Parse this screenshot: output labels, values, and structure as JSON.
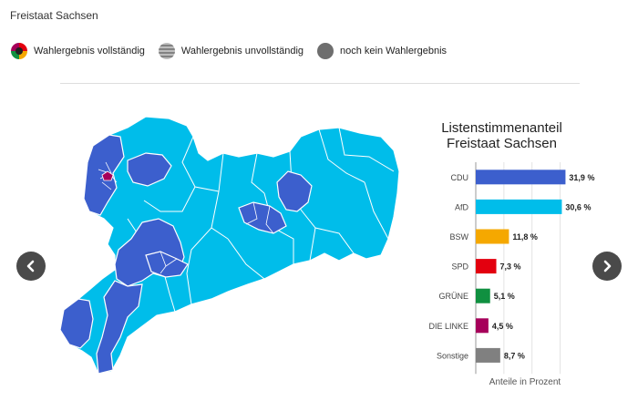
{
  "page": {
    "title": "Freistaat Sachsen"
  },
  "legend": {
    "items": [
      {
        "label": "Wahlergebnis vollständig",
        "icon": "multicolor-pie-icon"
      },
      {
        "label": "Wahlergebnis unvollständig",
        "icon": "striped-circle-icon"
      },
      {
        "label": "noch kein Wahlergebnis",
        "icon": "gray-circle-icon"
      }
    ]
  },
  "colors": {
    "cdu": "#3c5fcd",
    "afd": "#00bdea",
    "bsw": "#f5a800",
    "spd": "#e3000f",
    "gruene": "#109040",
    "linke": "#a6005a",
    "sonstige": "#808080",
    "map_border": "#ffffff"
  },
  "navigation": {
    "prev_icon": "chevron-left-icon",
    "next_icon": "chevron-right-icon"
  },
  "chart_data": {
    "type": "bar",
    "orientation": "horizontal",
    "title_line1": "Listenstimmenanteil",
    "title_line2": "Freistaat Sachsen",
    "xlabel": "Anteile in Prozent",
    "categories": [
      "CDU",
      "AfD",
      "BSW",
      "SPD",
      "GRÜNE",
      "DIE LINKE",
      "Sonstige"
    ],
    "values": [
      31.9,
      30.6,
      11.8,
      7.3,
      5.1,
      4.5,
      8.7
    ],
    "value_labels": [
      "31,9 %",
      "30,6 %",
      "11,8 %",
      "7,3 %",
      "5,1 %",
      "4,5 %",
      "8,7 %"
    ],
    "colors": [
      "#3c5fcd",
      "#00bdea",
      "#f5a800",
      "#e3000f",
      "#109040",
      "#a6005a",
      "#808080"
    ],
    "xlim": [
      0,
      35
    ],
    "grid": true
  }
}
